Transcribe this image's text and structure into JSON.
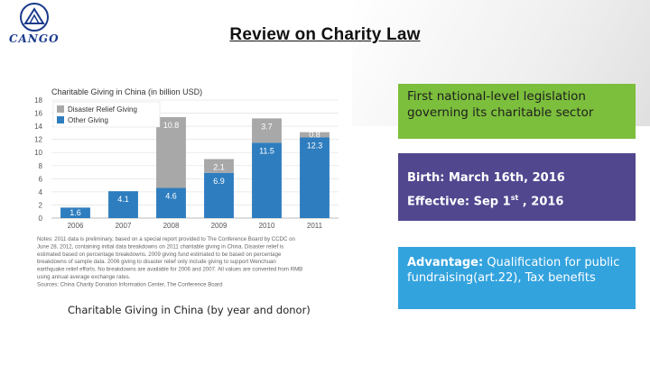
{
  "header": {
    "logo_text": "CANGO",
    "title": "Review on Charity Law"
  },
  "chart_data": {
    "type": "bar",
    "stacked": true,
    "title": "Charitable Giving in China (in billion USD)",
    "categories": [
      "2006",
      "2007",
      "2008",
      "2009",
      "2010",
      "2011"
    ],
    "series": [
      {
        "name": "Other Giving",
        "values": [
          1.6,
          4.1,
          4.6,
          6.9,
          11.5,
          12.3
        ],
        "color": "#2e7dbf",
        "labels": [
          "1.6",
          "4.1",
          "4.6",
          "6.9",
          "11.5",
          "12.3"
        ]
      },
      {
        "name": "Disaster Relief Giving",
        "values": [
          0,
          0,
          10.8,
          2.1,
          3.7,
          0.8
        ],
        "color": "#a8a8a8",
        "labels": [
          "",
          "",
          "10.8",
          "2.1",
          "3.7",
          "0.8"
        ]
      }
    ],
    "yticks": [
      "0",
      "2",
      "4",
      "6",
      "8",
      "10",
      "12",
      "14",
      "16",
      "18"
    ],
    "ylim": [
      0,
      18
    ],
    "legend_position": "top-left",
    "notes": [
      "Notes: 2011 data is preliminary, based on a special report provided to The Conference Board by CCDC on",
      "June 28, 2012, containing initial data breakdowns on 2011 charitable giving in China. Disaster relief is",
      "estimated based on percentage breakdowns. 2009 giving fund estimated to be based on percentage",
      "breakdowns of sample data. 2006 giving to disaster relief only include giving to support Wenchuan",
      "earthquake relief efforts. No breakdowns are available for 2006 and 2007. All values are converted from RMB",
      "using annual average exchange rates.",
      "Sources: China Charity Donation Information Center, The Conference Board"
    ],
    "caption": "Charitable Giving in China (by year and donor)"
  },
  "boxes": {
    "box1_text": "First national-level legislation governing its charitable sector",
    "box2_birth": "Birth: March 16th, 2016",
    "box2_effective_pre": "Effective:   Sep 1",
    "box2_effective_sup": "st",
    "box2_effective_post": " , 2016",
    "box3_label": "Advantage:",
    "box3_text": " Qualification for public fundraising(art.22),   Tax benefits"
  }
}
